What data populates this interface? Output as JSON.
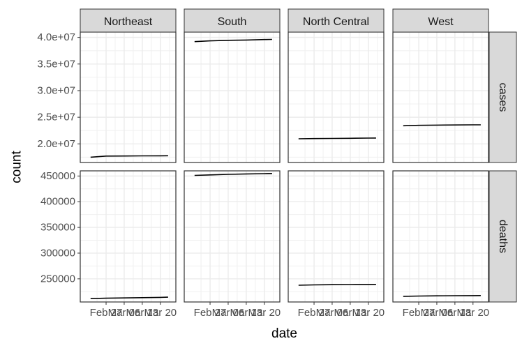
{
  "chart_data": {
    "type": "line",
    "xlabel": "date",
    "ylabel": "count",
    "columns": [
      "Northeast",
      "South",
      "North Central",
      "West"
    ],
    "rows": [
      "cases",
      "deaths"
    ],
    "x_ticks": [
      "Feb 27",
      "Mar 06",
      "Mar 13",
      "Mar 20"
    ],
    "grid": true,
    "legend": "none",
    "scales": {
      "cases": {
        "ylim": [
          16500000,
          41000000
        ],
        "ticks": [
          20000000,
          25000000,
          30000000,
          35000000,
          40000000
        ],
        "tick_labels": [
          "2.0e+07",
          "2.5e+07",
          "3.0e+07",
          "3.5e+07",
          "4.0e+07"
        ]
      },
      "deaths": {
        "ylim": [
          205000,
          460000
        ],
        "ticks": [
          250000,
          300000,
          350000,
          400000,
          450000
        ],
        "tick_labels": [
          "250000",
          "300000",
          "350000",
          "400000",
          "450000"
        ]
      }
    },
    "panels": [
      {
        "region": "Northeast",
        "metric": "cases",
        "x": [
          "2021-02-21",
          "2021-02-27",
          "2021-03-06",
          "2021-03-13",
          "2021-03-20",
          "2021-03-23"
        ],
        "y": [
          17500000,
          17700000,
          17720000,
          17740000,
          17760000,
          17770000
        ]
      },
      {
        "region": "South",
        "metric": "cases",
        "x": [
          "2021-02-21",
          "2021-02-27",
          "2021-03-06",
          "2021-03-13",
          "2021-03-20",
          "2021-03-23"
        ],
        "y": [
          39200000,
          39350000,
          39450000,
          39500000,
          39600000,
          39620000
        ]
      },
      {
        "region": "North Central",
        "metric": "cases",
        "x": [
          "2021-02-21",
          "2021-02-27",
          "2021-03-06",
          "2021-03-13",
          "2021-03-20",
          "2021-03-23"
        ],
        "y": [
          20950000,
          21000000,
          21020000,
          21050000,
          21080000,
          21100000
        ]
      },
      {
        "region": "West",
        "metric": "cases",
        "x": [
          "2021-02-21",
          "2021-02-27",
          "2021-03-06",
          "2021-03-13",
          "2021-03-20",
          "2021-03-23"
        ],
        "y": [
          23400000,
          23480000,
          23520000,
          23550000,
          23570000,
          23580000
        ]
      },
      {
        "region": "Northeast",
        "metric": "deaths",
        "x": [
          "2021-02-21",
          "2021-02-27",
          "2021-03-06",
          "2021-03-13",
          "2021-03-20",
          "2021-03-23"
        ],
        "y": [
          211500,
          212300,
          212900,
          213400,
          214000,
          214300
        ]
      },
      {
        "region": "South",
        "metric": "deaths",
        "x": [
          "2021-02-21",
          "2021-02-27",
          "2021-03-06",
          "2021-03-13",
          "2021-03-20",
          "2021-03-23"
        ],
        "y": [
          451200,
          452200,
          453200,
          454000,
          454600,
          454900
        ]
      },
      {
        "region": "North Central",
        "metric": "deaths",
        "x": [
          "2021-02-21",
          "2021-02-27",
          "2021-03-06",
          "2021-03-13",
          "2021-03-20",
          "2021-03-23"
        ],
        "y": [
          237600,
          238200,
          238600,
          238900,
          239100,
          239200
        ]
      },
      {
        "region": "West",
        "metric": "deaths",
        "x": [
          "2021-02-21",
          "2021-02-27",
          "2021-03-06",
          "2021-03-13",
          "2021-03-20",
          "2021-03-23"
        ],
        "y": [
          216000,
          216500,
          216900,
          217200,
          217400,
          217500
        ]
      }
    ]
  }
}
